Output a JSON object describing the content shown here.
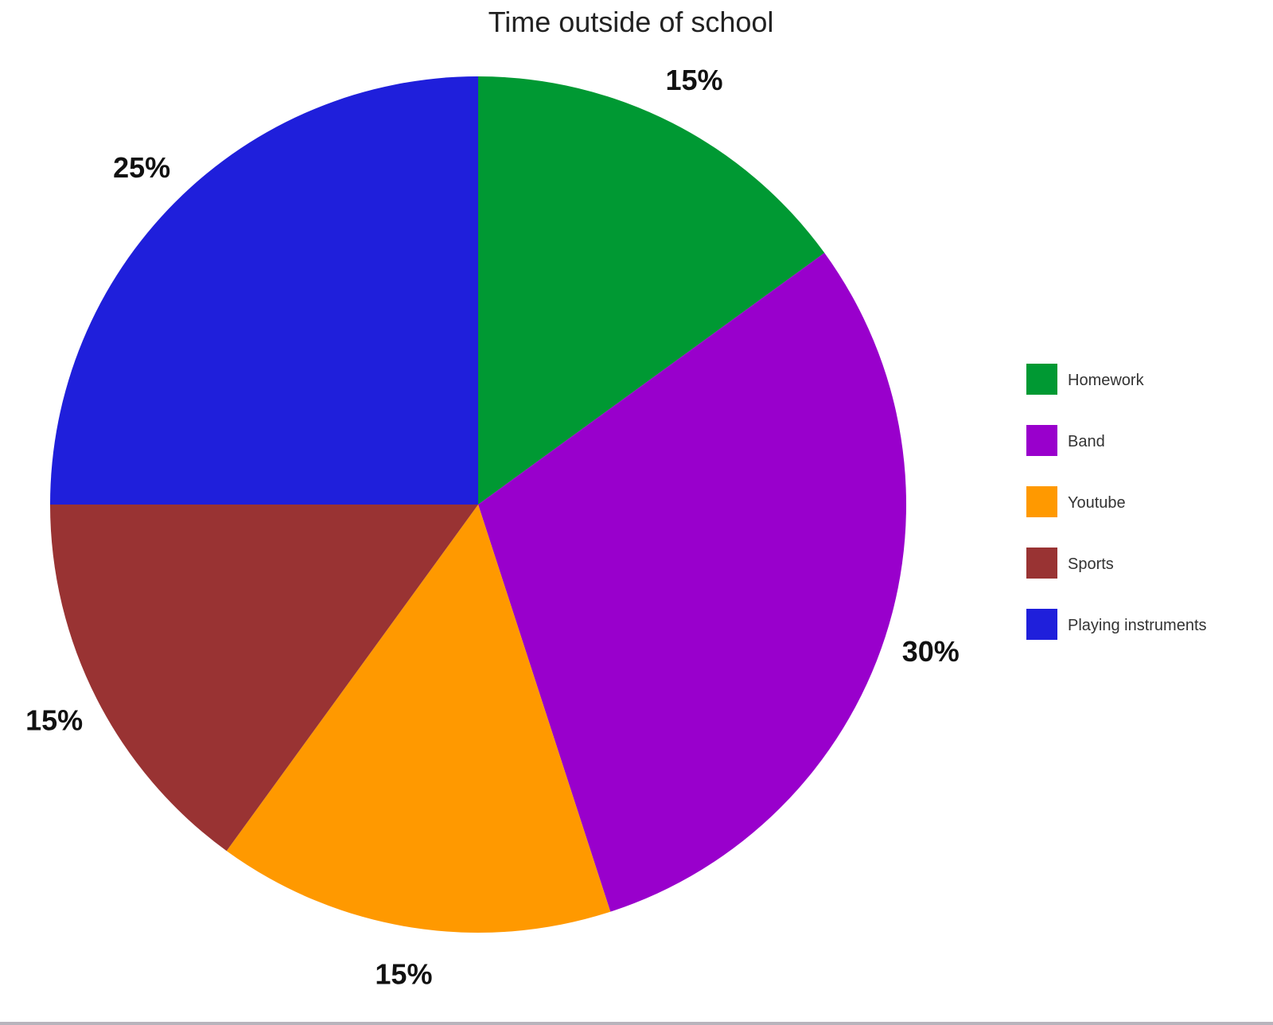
{
  "chart_data": {
    "type": "pie",
    "title": "Time outside of school",
    "start": "top",
    "direction": "clockwise",
    "legend_position": "right",
    "slices": [
      {
        "label": "Homework",
        "value": 15,
        "display": "15%",
        "color": "#009933"
      },
      {
        "label": "Band",
        "value": 30,
        "display": "30%",
        "color": "#9900cc"
      },
      {
        "label": "Youtube",
        "value": 15,
        "display": "15%",
        "color": "#ff9900"
      },
      {
        "label": "Sports",
        "value": 15,
        "display": "15%",
        "color": "#993333"
      },
      {
        "label": "Playing instruments",
        "value": 25,
        "display": "25%",
        "color": "#1f1fdb"
      }
    ]
  }
}
